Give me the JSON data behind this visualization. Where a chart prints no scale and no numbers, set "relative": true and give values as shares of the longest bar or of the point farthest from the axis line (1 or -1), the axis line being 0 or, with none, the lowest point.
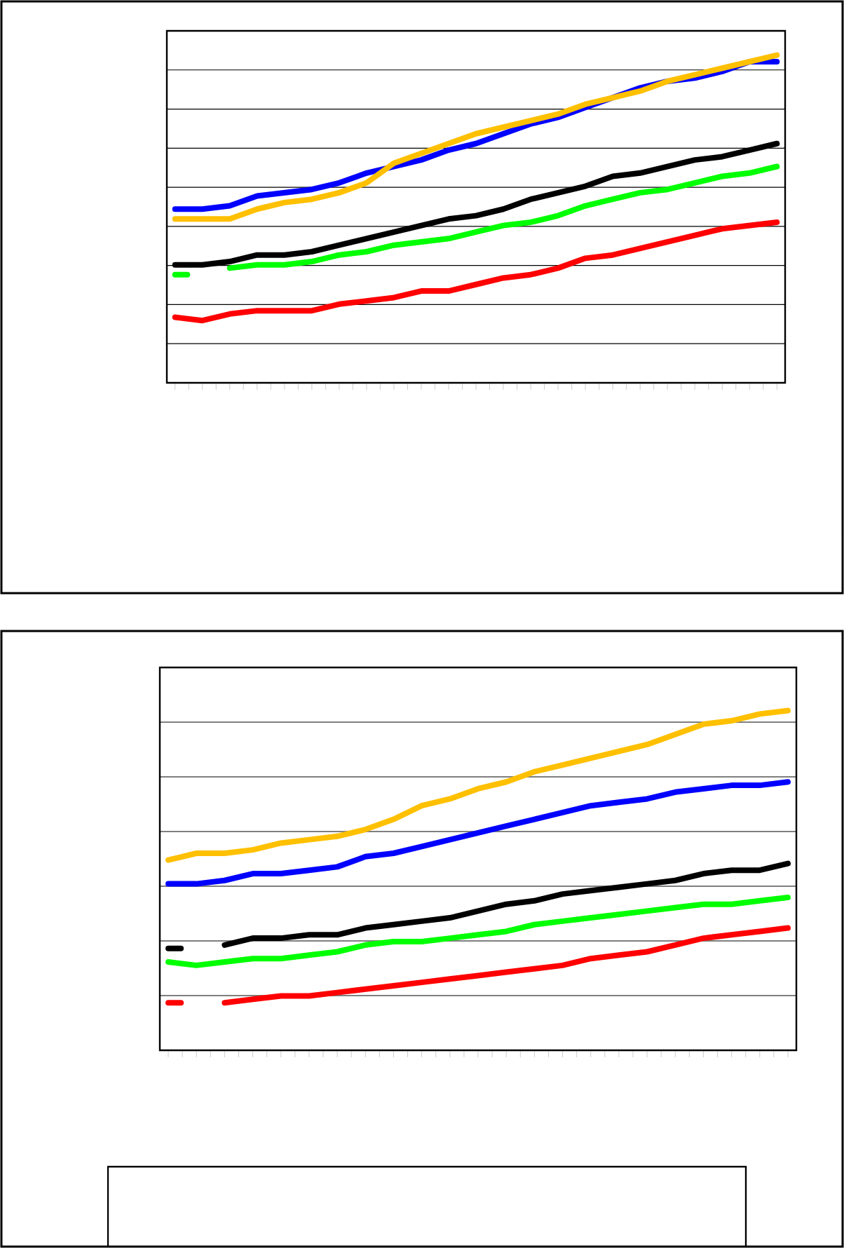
{
  "chart_data": [
    {
      "type": "line",
      "relative": true,
      "grid": "y",
      "marker": "none",
      "line_style": "solid",
      "categories": [
        null,
        null,
        null,
        null,
        null,
        null,
        null,
        null,
        null,
        null,
        null,
        null,
        null,
        null,
        null,
        null,
        null,
        null,
        null,
        null,
        null,
        null,
        null
      ],
      "series": [
        {
          "color": "#0000ff",
          "values": [
            0.53,
            0.53,
            0.54,
            0.57,
            0.58,
            0.59,
            0.61,
            0.64,
            0.66,
            0.68,
            0.71,
            0.73,
            0.76,
            0.79,
            0.81,
            0.84,
            0.87,
            0.9,
            0.92,
            0.93,
            0.95,
            0.98,
            0.98
          ]
        },
        {
          "color": "#ffc000",
          "values": [
            0.5,
            0.5,
            0.5,
            0.53,
            0.55,
            0.56,
            0.58,
            0.61,
            0.67,
            0.7,
            0.73,
            0.76,
            0.78,
            0.8,
            0.82,
            0.85,
            0.87,
            0.89,
            0.92,
            0.94,
            0.96,
            0.98,
            1
          ]
        },
        {
          "color": "#000000",
          "values": [
            0.36,
            0.36,
            0.37,
            0.39,
            0.39,
            0.4,
            0.42,
            0.44,
            0.46,
            0.48,
            0.5,
            0.51,
            0.53,
            0.56,
            0.58,
            0.6,
            0.63,
            0.64,
            0.66,
            0.68,
            0.69,
            0.71,
            0.73
          ]
        },
        {
          "color": "#00ff00",
          "values": [
            0.33,
            null,
            0.35,
            0.36,
            0.36,
            0.37,
            0.39,
            0.4,
            0.42,
            0.43,
            0.44,
            0.46,
            0.48,
            0.49,
            0.51,
            0.54,
            0.56,
            0.58,
            0.59,
            0.61,
            0.63,
            0.64,
            0.66
          ]
        },
        {
          "color": "#ff0000",
          "values": [
            0.2,
            0.19,
            0.21,
            0.22,
            0.22,
            0.22,
            0.24,
            0.25,
            0.26,
            0.28,
            0.28,
            0.3,
            0.32,
            0.33,
            0.35,
            0.38,
            0.39,
            0.41,
            0.43,
            0.45,
            0.47,
            0.48,
            0.49
          ]
        }
      ]
    },
    {
      "type": "line",
      "relative": true,
      "grid": "y",
      "marker": "none",
      "line_style": "solid",
      "categories": [
        null,
        null,
        null,
        null,
        null,
        null,
        null,
        null,
        null,
        null,
        null,
        null,
        null,
        null,
        null,
        null,
        null,
        null,
        null,
        null,
        null,
        null,
        null
      ],
      "series": [
        {
          "color": "#ffc000",
          "values": [
            0.56,
            0.58,
            0.58,
            0.59,
            0.61,
            0.62,
            0.63,
            0.65,
            0.68,
            0.72,
            0.74,
            0.77,
            0.79,
            0.82,
            0.84,
            0.86,
            0.88,
            0.9,
            0.93,
            0.96,
            0.97,
            0.99,
            1
          ]
        },
        {
          "color": "#0000ff",
          "values": [
            0.49,
            0.49,
            0.5,
            0.52,
            0.52,
            0.53,
            0.54,
            0.57,
            0.58,
            0.6,
            0.62,
            0.64,
            0.66,
            0.68,
            0.7,
            0.72,
            0.73,
            0.74,
            0.76,
            0.77,
            0.78,
            0.78,
            0.79
          ]
        },
        {
          "color": "#000000",
          "values": [
            0.3,
            null,
            0.31,
            0.33,
            0.33,
            0.34,
            0.34,
            0.36,
            0.37,
            0.38,
            0.39,
            0.41,
            0.43,
            0.44,
            0.46,
            0.47,
            0.48,
            0.49,
            0.5,
            0.52,
            0.53,
            0.53,
            0.55
          ]
        },
        {
          "color": "#00ff00",
          "values": [
            0.26,
            0.25,
            0.26,
            0.27,
            0.27,
            0.28,
            0.29,
            0.31,
            0.32,
            0.32,
            0.33,
            0.34,
            0.35,
            0.37,
            0.38,
            0.39,
            0.4,
            0.41,
            0.42,
            0.43,
            0.43,
            0.44,
            0.45
          ]
        },
        {
          "color": "#ff0000",
          "values": [
            0.14,
            null,
            0.14,
            0.15,
            0.16,
            0.16,
            0.17,
            0.18,
            0.19,
            0.2,
            0.21,
            0.22,
            0.23,
            0.24,
            0.25,
            0.27,
            0.28,
            0.29,
            0.31,
            0.33,
            0.34,
            0.35,
            0.36
          ]
        }
      ]
    }
  ]
}
